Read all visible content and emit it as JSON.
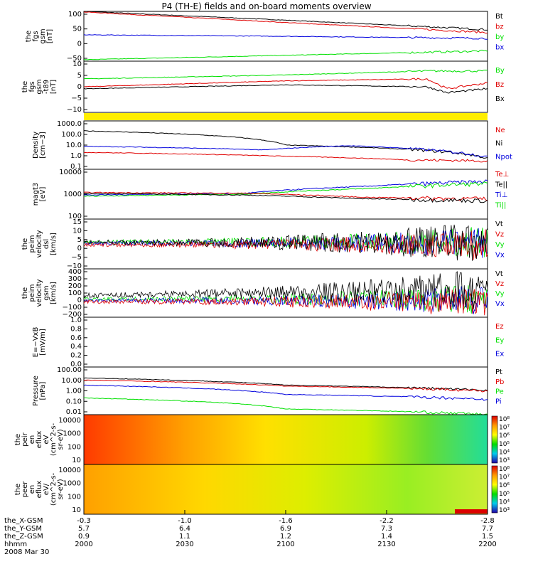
{
  "title": "P4 (TH-E) fields and on-board moments overview",
  "colors": {
    "black": "#000000",
    "red": "#e00000",
    "green": "#00e000",
    "blue": "#0000dd",
    "yellow": "#ffee00"
  },
  "chart_data": {
    "type": "line",
    "x_hhmm": [
      "2000",
      "2030",
      "2100",
      "2130",
      "2200"
    ],
    "orbit": {
      "rows": [
        {
          "label": "the_X-GSM",
          "values": [
            "-0.3",
            "-1.0",
            "-1.6",
            "-2.2",
            "-2.8"
          ]
        },
        {
          "label": "the_Y-GSM",
          "values": [
            "5.7",
            "6.4",
            "6.9",
            "7.3",
            "7.7"
          ]
        },
        {
          "label": "the_Z-GSM",
          "values": [
            "0.9",
            "1.1",
            "1.2",
            "1.4",
            "1.5"
          ]
        },
        {
          "label": "hhmm",
          "values": [
            "2000",
            "2030",
            "2100",
            "2130",
            "2200"
          ]
        }
      ],
      "date": "2008 Mar 30"
    },
    "panels": [
      {
        "id": "fgs_gsm",
        "ylabel": [
          "the",
          "fgs",
          "gsm",
          "[nT]"
        ],
        "scale": "linear",
        "ylim": [
          -60,
          110
        ],
        "ticks": [
          "100",
          "50",
          "0",
          "−50"
        ],
        "legend": [
          {
            "name": "Bt",
            "color": "black"
          },
          {
            "name": "bz",
            "color": "red"
          },
          {
            "name": "by",
            "color": "green"
          },
          {
            "name": "bx",
            "color": "blue"
          }
        ],
        "series": [
          {
            "name": "Bt",
            "color": "black",
            "points": [
              [
                0,
                110
              ],
              [
                0.5,
                80
              ],
              [
                1,
                48
              ]
            ]
          },
          {
            "name": "bz",
            "color": "red",
            "points": [
              [
                0,
                108
              ],
              [
                0.5,
                72
              ],
              [
                1,
                38
              ]
            ]
          },
          {
            "name": "by",
            "color": "green",
            "points": [
              [
                0,
                -55
              ],
              [
                0.5,
                -40
              ],
              [
                1,
                -25
              ]
            ]
          },
          {
            "name": "bx",
            "color": "blue",
            "points": [
              [
                0,
                30
              ],
              [
                0.5,
                25
              ],
              [
                1,
                18
              ]
            ]
          }
        ]
      },
      {
        "id": "fgs_gse",
        "ylabel": [
          "the",
          "fgs",
          "gsm",
          "-t89",
          "[nT]"
        ],
        "scale": "linear",
        "ylim": [
          -15,
          11
        ],
        "ticks": [
          "10",
          "5",
          "0",
          "−5",
          "−10"
        ],
        "legend": [
          {
            "name": "By",
            "color": "green"
          },
          {
            "name": "Bz",
            "color": "red"
          },
          {
            "name": "Bx",
            "color": "black"
          }
        ],
        "series": [
          {
            "name": "By",
            "color": "green",
            "points": [
              [
                0,
                2
              ],
              [
                0.5,
                4
              ],
              [
                0.85,
                6
              ],
              [
                1,
                6
              ]
            ]
          },
          {
            "name": "Bz",
            "color": "red",
            "points": [
              [
                0,
                -2
              ],
              [
                0.5,
                1
              ],
              [
                0.85,
                2
              ],
              [
                0.9,
                -3
              ],
              [
                1,
                0
              ]
            ]
          },
          {
            "name": "Bx",
            "color": "black",
            "points": [
              [
                0,
                -3
              ],
              [
                0.5,
                -1
              ],
              [
                0.85,
                -2
              ],
              [
                0.9,
                -5
              ],
              [
                1,
                -3
              ]
            ]
          }
        ]
      },
      {
        "id": "flag",
        "ylabel": [],
        "scale": "bar",
        "legend": [],
        "series": []
      },
      {
        "id": "density",
        "ylabel": [
          "Density",
          "[cm−3]"
        ],
        "scale": "log",
        "ylim": [
          0.1,
          1000
        ],
        "ticks": [
          "1000.0",
          "100.0",
          "10.0",
          "1.0",
          "0.1"
        ],
        "legend": [
          {
            "name": "Ne",
            "color": "red"
          },
          {
            "name": "Ni",
            "color": "black"
          },
          {
            "name": "Npot",
            "color": "blue"
          }
        ],
        "series": [
          {
            "name": "Ni",
            "color": "black",
            "points": [
              [
                0,
                150
              ],
              [
                0.5,
                10
              ],
              [
                1,
                0.8
              ]
            ]
          },
          {
            "name": "Npot",
            "color": "blue",
            "points": [
              [
                0,
                8
              ],
              [
                0.45,
                4
              ],
              [
                0.65,
                9
              ],
              [
                0.9,
                3
              ],
              [
                1,
                1
              ]
            ]
          },
          {
            "name": "Ne",
            "color": "red",
            "points": [
              [
                0,
                2.5
              ],
              [
                0.5,
                1.2
              ],
              [
                0.8,
                0.6
              ],
              [
                1,
                0.5
              ]
            ]
          }
        ]
      },
      {
        "id": "temperature",
        "ylabel": [
          "magt3",
          "[eV]"
        ],
        "scale": "log",
        "ylim": [
          20,
          10000
        ],
        "ticks": [
          "10000",
          "1000",
          "100"
        ],
        "legend": [
          {
            "name": "Te⊥",
            "color": "red"
          },
          {
            "name": "Te||",
            "color": "black"
          },
          {
            "name": "Ti⊥",
            "color": "blue"
          },
          {
            "name": "Ti||",
            "color": "green"
          }
        ],
        "series": [
          {
            "name": "Ti⊥",
            "color": "blue",
            "points": [
              [
                0,
                400
              ],
              [
                0.4,
                500
              ],
              [
                0.7,
                1200
              ],
              [
                1,
                2200
              ]
            ]
          },
          {
            "name": "Ti||",
            "color": "green",
            "points": [
              [
                0,
                350
              ],
              [
                0.4,
                450
              ],
              [
                0.7,
                900
              ],
              [
                1,
                1700
              ]
            ]
          },
          {
            "name": "Te⊥",
            "color": "red",
            "points": [
              [
                0,
                550
              ],
              [
                0.4,
                500
              ],
              [
                0.7,
                300
              ],
              [
                1,
                250
              ]
            ]
          },
          {
            "name": "Te||",
            "color": "black",
            "points": [
              [
                0,
                500
              ],
              [
                0.4,
                400
              ],
              [
                0.7,
                250
              ],
              [
                1,
                200
              ]
            ]
          }
        ]
      },
      {
        "id": "vel_dsl",
        "ylabel": [
          "the",
          "peim",
          "velocity",
          "dsl",
          "[km/s]"
        ],
        "scale": "linear",
        "ylim": [
          -15,
          15
        ],
        "ticks": [
          "15",
          "10",
          "5",
          "0",
          "−5",
          "−10"
        ],
        "legend": [
          {
            "name": "Vt",
            "color": "black"
          },
          {
            "name": "Vz",
            "color": "red"
          },
          {
            "name": "Vy",
            "color": "green"
          },
          {
            "name": "Vx",
            "color": "blue"
          }
        ],
        "series": []
      },
      {
        "id": "vel_gsm",
        "ylabel": [
          "the",
          "peim",
          "velocity",
          "gsm",
          "[km/s]"
        ],
        "scale": "linear",
        "ylim": [
          -200,
          400
        ],
        "ticks": [
          "400",
          "300",
          "200",
          "100",
          "0",
          "−100",
          "−200"
        ],
        "legend": [
          {
            "name": "Vt",
            "color": "black"
          },
          {
            "name": "Vz",
            "color": "red"
          },
          {
            "name": "Vy",
            "color": "green"
          },
          {
            "name": "Vx",
            "color": "blue"
          }
        ],
        "series": []
      },
      {
        "id": "efield",
        "ylabel": [
          "E=−VxB",
          "[mV/m]"
        ],
        "scale": "linear",
        "ylim": [
          0,
          1
        ],
        "ticks": [
          "1.0",
          "0.8",
          "0.6",
          "0.4",
          "0.2",
          "0.0"
        ],
        "legend": [
          {
            "name": "Ez",
            "color": "red"
          },
          {
            "name": "Ey",
            "color": "green"
          },
          {
            "name": "Ex",
            "color": "blue"
          }
        ],
        "series": []
      },
      {
        "id": "pressure",
        "ylabel": [
          "Pressure",
          "[nPa]"
        ],
        "scale": "log",
        "ylim": [
          0.01,
          100
        ],
        "ticks": [
          "100.00",
          "10.00",
          "1.00",
          "0.10",
          "0.01"
        ],
        "legend": [
          {
            "name": "Pt",
            "color": "black"
          },
          {
            "name": "Pb",
            "color": "red"
          },
          {
            "name": "Pe",
            "color": "green"
          },
          {
            "name": "Pi",
            "color": "blue"
          }
        ],
        "series": [
          {
            "name": "Pt",
            "color": "black",
            "points": [
              [
                0,
                12
              ],
              [
                0.5,
                3
              ],
              [
                1,
                1.1
              ]
            ]
          },
          {
            "name": "Pb",
            "color": "red",
            "points": [
              [
                0,
                8
              ],
              [
                0.5,
                2.5
              ],
              [
                1,
                1
              ]
            ]
          },
          {
            "name": "Pi",
            "color": "blue",
            "points": [
              [
                0,
                3
              ],
              [
                0.5,
                0.5
              ],
              [
                1,
                0.2
              ]
            ]
          },
          {
            "name": "Pe",
            "color": "green",
            "points": [
              [
                0,
                0.25
              ],
              [
                0.5,
                0.03
              ],
              [
                1,
                0.01
              ]
            ]
          }
        ]
      },
      {
        "id": "spec_ion",
        "ylabel": [
          "the",
          "peir",
          "en",
          "eflux",
          "eV",
          "(cm^2-s-",
          "sr-eV)"
        ],
        "scale": "spectrogram",
        "ticks": [
          "10000",
          "1000",
          "100",
          "10"
        ],
        "legend": [],
        "series": [],
        "style": "ion"
      },
      {
        "id": "spec_ele",
        "ylabel": [
          "the",
          "peer",
          "en",
          "eflux",
          "eV/",
          "(cm^2-s-",
          "sr-eV)"
        ],
        "scale": "spectrogram",
        "ticks": [
          "10000",
          "1000",
          "100",
          "10"
        ],
        "legend": [],
        "series": [],
        "style": "electron"
      }
    ],
    "colorbar": {
      "ticks": [
        "10⁸",
        "10⁷",
        "10⁶",
        "10⁵",
        "10⁴",
        "10³"
      ]
    }
  }
}
